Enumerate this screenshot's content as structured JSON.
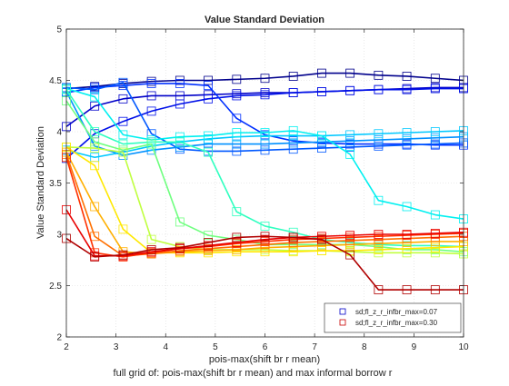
{
  "chart_data": {
    "type": "line",
    "title": "Value Standard Deviation",
    "xlabel": "pois-max(shift br r mean)",
    "ylabel": "Value Standard Deviation",
    "caption": "full grid of: pois-max(shift br r mean) and max informal borrow r",
    "xlim": [
      2,
      10
    ],
    "ylim": [
      2,
      5
    ],
    "xticks": [
      "2",
      "3",
      "4",
      "5",
      "6",
      "7",
      "8",
      "9",
      "10"
    ],
    "yticks": [
      "2",
      "2.5",
      "3",
      "3.5",
      "4",
      "4.5",
      "5"
    ],
    "grid": true,
    "legend_position": "bottom-right",
    "legend": [
      {
        "label": "sd;fl_z_r_infbr_max=0.07",
        "color": "#0000c8"
      },
      {
        "label": "sd;fl_z_r_infbr_max=0.30",
        "color": "#c80000"
      }
    ],
    "x": [
      2,
      2.571,
      3.143,
      3.714,
      4.286,
      4.857,
      5.429,
      6.0,
      6.571,
      7.143,
      7.714,
      8.286,
      8.857,
      9.429,
      10
    ],
    "series": [
      {
        "color": "#00008c",
        "values": [
          4.42,
          4.44,
          4.47,
          4.49,
          4.5,
          4.5,
          4.51,
          4.52,
          4.54,
          4.57,
          4.57,
          4.55,
          4.54,
          4.52,
          4.5
        ]
      },
      {
        "color": "#0000c8",
        "values": [
          4.05,
          4.25,
          4.32,
          4.35,
          4.35,
          4.36,
          4.37,
          4.38,
          4.38,
          4.39,
          4.4,
          4.41,
          4.42,
          4.43,
          4.43
        ]
      },
      {
        "color": "#0010e8",
        "values": [
          3.74,
          3.98,
          4.1,
          4.2,
          4.27,
          4.32,
          4.35,
          4.36,
          4.38,
          4.39,
          4.4,
          4.41,
          4.41,
          4.42,
          4.42
        ]
      },
      {
        "color": "#0030ff",
        "values": [
          4.38,
          4.43,
          4.45,
          4.47,
          4.47,
          4.45,
          4.13,
          3.97,
          3.91,
          3.89,
          3.88,
          3.88,
          3.88,
          3.87,
          3.87
        ]
      },
      {
        "color": "#0058ff",
        "values": [
          4.43,
          4.41,
          4.48,
          3.98,
          3.83,
          3.81,
          3.81,
          3.82,
          3.83,
          3.84,
          3.85,
          3.86,
          3.87,
          3.88,
          3.89
        ]
      },
      {
        "color": "#0090ff",
        "values": [
          4.39,
          3.86,
          3.77,
          3.82,
          3.85,
          3.88,
          3.88,
          3.88,
          3.89,
          3.9,
          3.91,
          3.92,
          3.93,
          3.94,
          3.95
        ]
      },
      {
        "color": "#00c8ff",
        "values": [
          3.82,
          3.75,
          3.8,
          3.86,
          3.9,
          3.93,
          3.95,
          3.96,
          3.96,
          3.96,
          3.97,
          3.98,
          3.99,
          4.0,
          4.01
        ]
      },
      {
        "color": "#00f0f0",
        "values": [
          4.42,
          4.34,
          3.97,
          3.92,
          3.95,
          3.96,
          3.99,
          3.99,
          4.01,
          3.96,
          3.78,
          3.33,
          3.27,
          3.19,
          3.15
        ]
      },
      {
        "color": "#30ffc0",
        "values": [
          4.41,
          4.0,
          3.88,
          3.9,
          3.9,
          3.8,
          3.22,
          3.08,
          3.02,
          2.95,
          2.92,
          2.9,
          2.89,
          2.89,
          2.88
        ]
      },
      {
        "color": "#70ff80",
        "values": [
          4.3,
          3.9,
          3.82,
          3.88,
          3.12,
          2.99,
          2.95,
          2.9,
          2.9,
          2.9,
          2.9,
          2.88,
          2.85,
          2.85,
          2.83
        ]
      },
      {
        "color": "#c0ff40",
        "values": [
          3.85,
          3.84,
          3.8,
          2.95,
          2.88,
          2.85,
          2.85,
          2.85,
          2.84,
          2.84,
          2.83,
          2.82,
          2.82,
          2.82,
          2.81
        ]
      },
      {
        "color": "#ffe800",
        "values": [
          3.85,
          3.67,
          3.05,
          2.82,
          2.82,
          2.82,
          2.83,
          2.83,
          2.83,
          2.84,
          2.84,
          2.85,
          2.86,
          2.87,
          2.88
        ]
      },
      {
        "color": "#ffb000",
        "values": [
          3.8,
          3.27,
          2.83,
          2.81,
          2.83,
          2.84,
          2.85,
          2.87,
          2.88,
          2.89,
          2.9,
          2.91,
          2.92,
          2.93,
          2.93
        ]
      },
      {
        "color": "#ff7000",
        "values": [
          3.78,
          2.98,
          2.79,
          2.81,
          2.84,
          2.86,
          2.88,
          2.9,
          2.92,
          2.93,
          2.94,
          2.95,
          2.96,
          2.97,
          2.98
        ]
      },
      {
        "color": "#ff3000",
        "values": [
          3.75,
          2.82,
          2.78,
          2.82,
          2.86,
          2.88,
          2.91,
          2.93,
          2.95,
          2.96,
          2.97,
          2.98,
          2.99,
          3.0,
          3.01
        ]
      },
      {
        "color": "#e80000",
        "values": [
          3.24,
          2.79,
          2.79,
          2.83,
          2.86,
          2.89,
          2.92,
          2.95,
          2.97,
          2.98,
          2.99,
          3.0,
          3.0,
          3.01,
          3.02
        ]
      },
      {
        "color": "#b00000",
        "values": [
          2.96,
          2.78,
          2.8,
          2.85,
          2.87,
          2.92,
          2.97,
          2.98,
          2.97,
          2.95,
          2.8,
          2.46,
          2.46,
          2.46,
          2.46
        ]
      }
    ]
  }
}
